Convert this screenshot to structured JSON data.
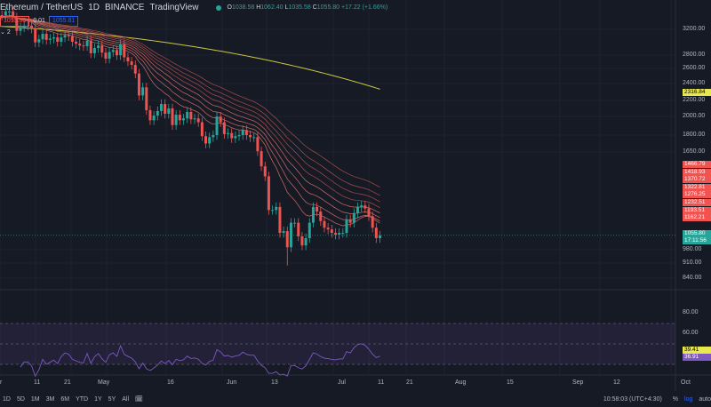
{
  "header": {
    "symbol": "Ethereum / TetherUS",
    "interval": "1D",
    "exchange": "BINANCE",
    "source": "TradingView",
    "o_label": "O",
    "o": "1038.58",
    "h_label": "H",
    "h": "1062.40",
    "l_label": "L",
    "l": "1035.58",
    "c_label": "C",
    "c": "1055.80",
    "change": "+17.22 (+1.66%)"
  },
  "trade": {
    "sell": "1055.80",
    "spread": "0.01",
    "buy": "1055.81"
  },
  "indicator_toggle": "2",
  "price_axis": [
    "3200.00",
    "2800.00",
    "2600.00",
    "2400.00",
    "2200.00",
    "2000.00",
    "1800.00",
    "1650.00",
    "980.00",
    "910.00",
    "840.00"
  ],
  "ma_labels": [
    "1466.79",
    "1418.93",
    "1370.72",
    "1322.81",
    "1276.25",
    "1232.51",
    "1193.51",
    "1162.21"
  ],
  "ma200_label": "2316.84",
  "last_price": "1055.80",
  "countdown": "17:11:56",
  "rsi_axis": [
    "80.00",
    "60.00"
  ],
  "rsi_labels": [
    "39.41",
    "36.91"
  ],
  "time_axis": [
    "r",
    "11",
    "21",
    "May",
    "16",
    "Jun",
    "13",
    "Jul",
    "11",
    "21",
    "Aug",
    "15",
    "Sep",
    "12",
    "Oct"
  ],
  "ranges": [
    "1D",
    "5D",
    "1M",
    "3M",
    "6M",
    "YTD",
    "1Y",
    "5Y",
    "All"
  ],
  "clock": "10:58:03 (UTC+4:30)",
  "pct": "%",
  "log": "log",
  "auto": "auto",
  "colors": {
    "up": "#26a69a",
    "down": "#ef5350",
    "ma200": "#c9c940",
    "rsi": "#7e57c2"
  },
  "chart_data": {
    "type": "candlestick",
    "start": "Apr 1",
    "interval": "1D",
    "closes": [
      3450,
      3440,
      3520,
      3520,
      3410,
      3170,
      3230,
      3260,
      3260,
      3210,
      2980,
      3030,
      3120,
      3020,
      3040,
      3060,
      2990,
      3060,
      3100,
      3080,
      2990,
      2960,
      2930,
      2920,
      3010,
      2810,
      2890,
      2930,
      2820,
      2730,
      2830,
      2860,
      2780,
      2950,
      2750,
      2690,
      2640,
      2520,
      2240,
      2340,
      2070,
      1960,
      2010,
      2060,
      2140,
      2030,
      2090,
      1910,
      2020,
      1960,
      1980,
      2050,
      1970,
      1980,
      1940,
      1800,
      1730,
      1790,
      1810,
      2000,
      1940,
      1820,
      1830,
      1780,
      1800,
      1810,
      1860,
      1810,
      1790,
      1790,
      1660,
      1530,
      1450,
      1210,
      1210,
      1230,
      1070,
      1080,
      990,
      1130,
      1130,
      1050,
      1000,
      1040,
      1130,
      1230,
      1200,
      1140,
      1100,
      1090,
      1070,
      1060,
      1070,
      1070,
      1150,
      1130,
      1190,
      1230,
      1240,
      1220,
      1170,
      1100,
      1040,
      1055
    ],
    "ma200": [
      3250,
      2316.84
    ]
  }
}
